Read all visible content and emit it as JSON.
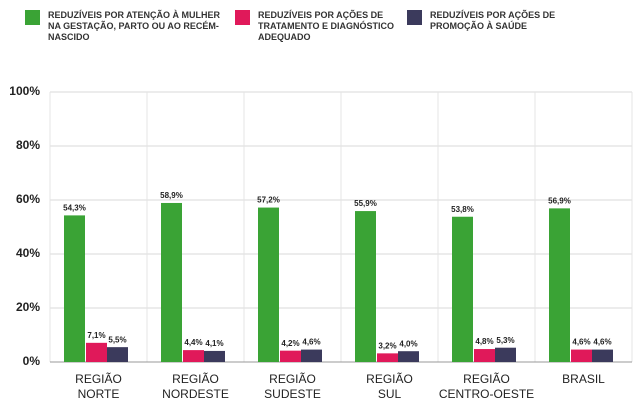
{
  "chart_data": {
    "type": "bar",
    "categories": [
      [
        "REGIÃO",
        "NORTE"
      ],
      [
        "REGIÃO",
        "NORDESTE"
      ],
      [
        "REGIÃO",
        "SUDESTE"
      ],
      [
        "REGIÃO",
        "SUL"
      ],
      [
        "REGIÃO",
        "CENTRO-OESTE"
      ],
      [
        "BRASIL"
      ]
    ],
    "series": [
      {
        "name": "REDUZÍVEIS POR ATENÇÃO À MULHER NA GESTAÇÃO, PARTO OU AO RECÉM-NASCIDO",
        "color": "#3aa335",
        "values": [
          54.3,
          58.9,
          57.2,
          55.9,
          53.8,
          56.9
        ],
        "value_labels": [
          "54,3%",
          "58,9%",
          "57,2%",
          "55,9%",
          "53,8%",
          "56,9%"
        ]
      },
      {
        "name": "REDUZÍVEIS POR AÇÕES DE TRATAMENTO E DIAGNÓSTICO ADEQUADO",
        "color": "#e0195a",
        "values": [
          7.1,
          4.4,
          4.2,
          3.2,
          4.8,
          4.6
        ],
        "value_labels": [
          "7,1%",
          "4,4%",
          "4,2%",
          "3,2%",
          "4,8%",
          "4,6%"
        ]
      },
      {
        "name": "REDUZÍVEIS POR AÇÕES DE PROMOÇÃO À SAÚDE",
        "color": "#3b3a5c",
        "values": [
          5.5,
          4.1,
          4.6,
          4.0,
          5.3,
          4.6
        ],
        "value_labels": [
          "5,5%",
          "4,1%",
          "4,6%",
          "4,0%",
          "5,3%",
          "4,6%"
        ]
      }
    ],
    "ylim": [
      0,
      100
    ],
    "yticks": [
      {
        "value": 0,
        "label": "0%"
      },
      {
        "value": 20,
        "label": "20%"
      },
      {
        "value": 40,
        "label": "40%"
      },
      {
        "value": 60,
        "label": "60%"
      },
      {
        "value": 80,
        "label": "80%"
      },
      {
        "value": 100,
        "label": "100%"
      }
    ],
    "grid": true
  }
}
